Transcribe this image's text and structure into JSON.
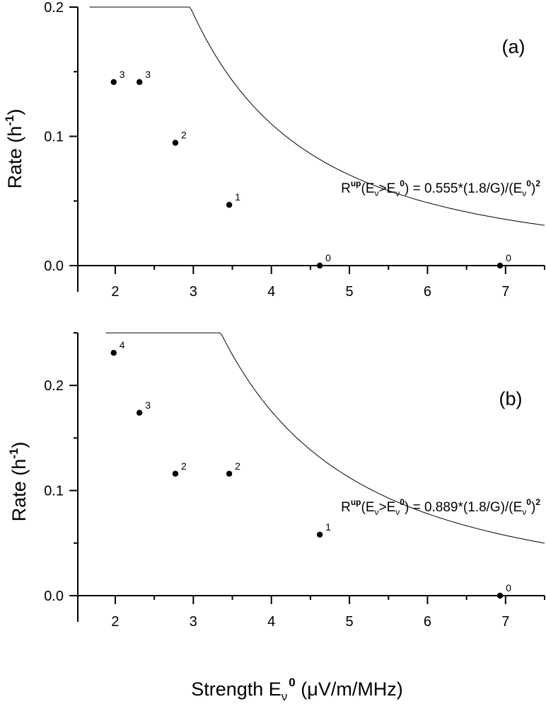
{
  "chart_data": [
    {
      "type": "scatter",
      "panel_label": "(a)",
      "ylabel": "Rate",
      "ylabel_unit": "(h",
      "ylabel_unit_exp": "-1",
      "ylabel_close": ")",
      "xlim": [
        1.52,
        7.5
      ],
      "ylim": [
        0,
        0.2
      ],
      "xticks": [
        2,
        3,
        4,
        5,
        6,
        7
      ],
      "yticks": [
        0.0,
        0.1,
        0.2
      ],
      "ytick_labels": [
        "0.0",
        "0.1",
        "0.2"
      ],
      "points": [
        {
          "x": 1.98,
          "y": 0.142,
          "label": "3"
        },
        {
          "x": 2.31,
          "y": 0.142,
          "label": "3"
        },
        {
          "x": 2.77,
          "y": 0.095,
          "label": "2"
        },
        {
          "x": 3.46,
          "y": 0.047,
          "label": "1"
        },
        {
          "x": 4.62,
          "y": 0.0,
          "label": "0"
        },
        {
          "x": 6.93,
          "y": 0.0,
          "label": "0"
        }
      ],
      "fit": {
        "coefficient": 0.555,
        "x_range": [
          1.67,
          7.5
        ]
      },
      "annotation": {
        "R": "R",
        "up": "up",
        "open": "(E",
        "nu1": "ν",
        "gt": ">E",
        "nu2": "ν",
        "zero": "0",
        "mid": ") = 0.555*(1.8/G)/(E",
        "nu3": "ν",
        "zero2": "0",
        "close": ")",
        "sq": "2"
      }
    },
    {
      "type": "scatter",
      "panel_label": "(b)",
      "ylabel": "Rate",
      "ylabel_unit": "(h",
      "ylabel_unit_exp": "-1",
      "ylabel_close": ")",
      "xlim": [
        1.52,
        7.5
      ],
      "ylim": [
        0,
        0.25
      ],
      "xticks": [
        2,
        3,
        4,
        5,
        6,
        7
      ],
      "yticks": [
        0.0,
        0.1,
        0.2
      ],
      "ytick_labels": [
        "0.0",
        "0.1",
        "0.2"
      ],
      "points": [
        {
          "x": 1.98,
          "y": 0.231,
          "label": "4"
        },
        {
          "x": 2.31,
          "y": 0.174,
          "label": "3"
        },
        {
          "x": 2.77,
          "y": 0.116,
          "label": "2"
        },
        {
          "x": 3.46,
          "y": 0.116,
          "label": "2"
        },
        {
          "x": 4.62,
          "y": 0.058,
          "label": "1"
        },
        {
          "x": 6.93,
          "y": 0.0,
          "label": "0"
        }
      ],
      "fit": {
        "coefficient": 0.889,
        "x_range": [
          1.88,
          7.5
        ]
      },
      "annotation": {
        "R": "R",
        "up": "up",
        "open": "(E",
        "nu1": "ν",
        "gt": ">E",
        "nu2": "ν",
        "zero": "0",
        "mid": ") = 0.889*(1.8/G)/(E",
        "nu3": "ν",
        "zero2": "0",
        "close": ")",
        "sq": "2"
      }
    }
  ],
  "xlabel": {
    "main": "Strength E",
    "sub": "ν",
    "sup": "0",
    "unit_pre": " (",
    "mu": "μ",
    "unit_post": "V/m/MHz)"
  }
}
